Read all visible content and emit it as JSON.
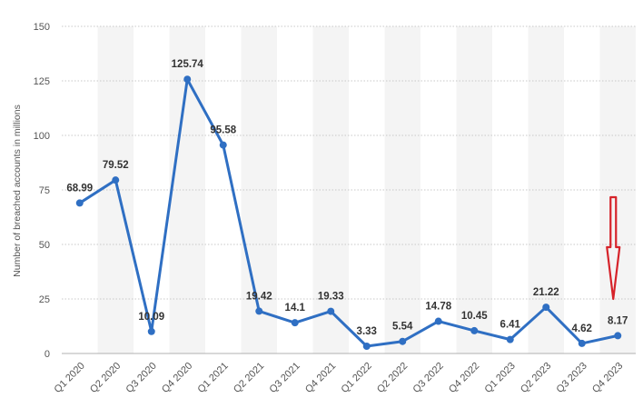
{
  "chart_data": {
    "type": "line",
    "title": "",
    "xlabel": "",
    "ylabel": "Number of breached accounts in millions",
    "ylim": [
      0,
      150
    ],
    "yticks": [
      0,
      25,
      50,
      75,
      100,
      125,
      150
    ],
    "grid": true,
    "legend": "none",
    "categories": [
      "Q1 2020",
      "Q2 2020",
      "Q3 2020",
      "Q4 2020",
      "Q1 2021",
      "Q2 2021",
      "Q3 2021",
      "Q4 2021",
      "Q1 2022",
      "Q2 2022",
      "Q3 2022",
      "Q4 2022",
      "Q1 2023",
      "Q2 2023",
      "Q3 2023",
      "Q4 2023"
    ],
    "series": [
      {
        "values": [
          68.99,
          79.52,
          10.09,
          125.74,
          95.58,
          19.42,
          14.1,
          19.33,
          3.33,
          5.54,
          14.78,
          10.45,
          6.41,
          21.22,
          4.62,
          8.17
        ],
        "labels": [
          "68.99",
          "79.52",
          "10.09",
          "125.74",
          "95.58",
          "19.42",
          "14.1",
          "19.33",
          "3.33",
          "5.54",
          "14.78",
          "10.45",
          "6.41",
          "21.22",
          "4.62",
          "8.17"
        ]
      }
    ],
    "annotations": [
      {
        "type": "arrow",
        "direction": "down",
        "target_category": "Q4 2023"
      }
    ],
    "colors": {
      "line": "#2f6fc3",
      "band": "#f4f4f4",
      "grid": "#c8c8c8",
      "text": "#555555",
      "label": "#333333",
      "arrow": "#d6232a"
    }
  }
}
